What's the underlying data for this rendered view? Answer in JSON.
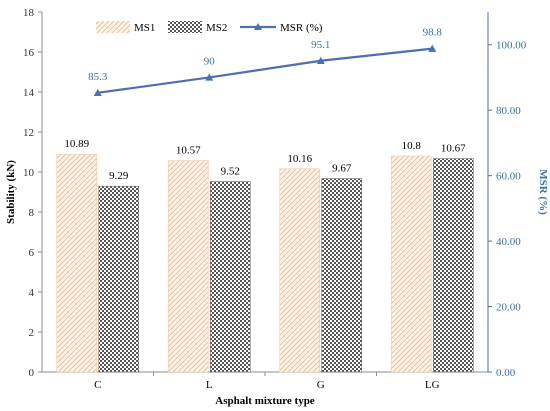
{
  "chart_data": {
    "type": "bar",
    "categories": [
      "C",
      "L",
      "G",
      "LG"
    ],
    "xlabel": "Asphalt mixture type",
    "ylabel": "Stability (kN)",
    "ylim": [
      0,
      18
    ],
    "yticks": [
      "0",
      "2",
      "4",
      "6",
      "8",
      "10",
      "12",
      "14",
      "16",
      "18"
    ],
    "y2label": "MSR (%)",
    "y2lim": [
      0,
      110
    ],
    "y2ticks": [
      "0.00",
      "20.00",
      "40.00",
      "60.00",
      "80.00",
      "100.00"
    ],
    "grid": false,
    "legend_position": "top",
    "series": [
      {
        "name": "MS1",
        "type": "bar",
        "axis": "left",
        "values": [
          10.89,
          10.57,
          10.16,
          10.8
        ],
        "labels": [
          "10.89",
          "10.57",
          "10.16",
          "10.8"
        ],
        "color": "#f2c9a4"
      },
      {
        "name": "MS2",
        "type": "bar",
        "axis": "left",
        "values": [
          9.29,
          9.52,
          9.67,
          10.67
        ],
        "labels": [
          "9.29",
          "9.52",
          "9.67",
          "10.67"
        ],
        "color": "#555555"
      },
      {
        "name": "MSR (%)",
        "type": "line",
        "axis": "right",
        "values": [
          85.3,
          90,
          95.1,
          98.8
        ],
        "labels": [
          "85.3",
          "90",
          "95.1",
          "98.8"
        ],
        "color": "#4a6fb3"
      }
    ]
  }
}
